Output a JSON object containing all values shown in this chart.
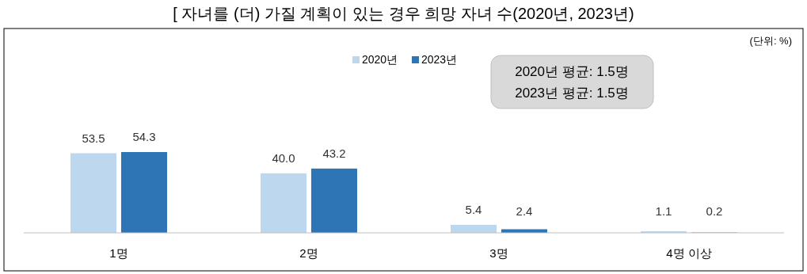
{
  "chart_data": {
    "type": "bar",
    "title": "[ 자녀를 (더) 가질 계획이 있는 경우 희망 자녀 수(2020년, 2023년)",
    "categories": [
      "1명",
      "2명",
      "3명",
      "4명 이상"
    ],
    "series": [
      {
        "name": "2020년",
        "color": "#bdd7ee",
        "values": [
          53.5,
          40.0,
          5.4,
          1.1
        ],
        "value_labels": [
          "53.5",
          "40.0",
          "5.4",
          "1.1"
        ]
      },
      {
        "name": "2023년",
        "color": "#2e75b6",
        "values": [
          54.3,
          43.2,
          2.4,
          0.2
        ],
        "value_labels": [
          "54.3",
          "43.2",
          "2.4",
          "0.2"
        ]
      }
    ],
    "legend": "top",
    "grid": false,
    "annotations": [
      "(단위: %)",
      "2020년 평균: 1.5명",
      "2023년 평균: 1.5명"
    ]
  }
}
